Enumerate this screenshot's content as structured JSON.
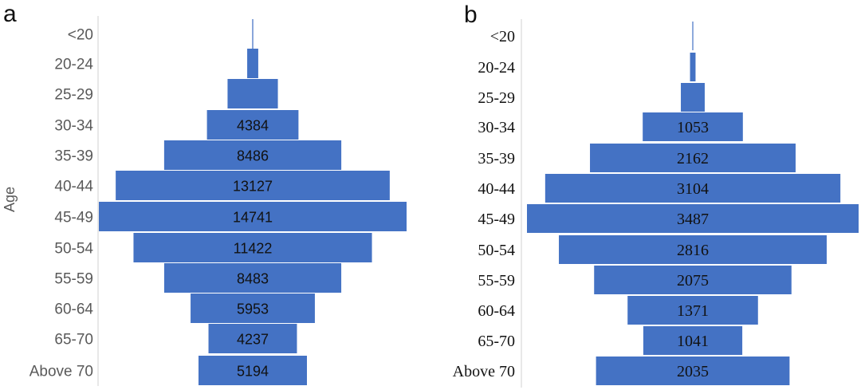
{
  "chart_data": [
    {
      "type": "bar",
      "orientation": "horizontal-centered",
      "panel_label": "a",
      "ylabel": "Age",
      "categories": [
        "<20",
        "20-24",
        "25-29",
        "30-34",
        "35-39",
        "40-44",
        "45-49",
        "50-54",
        "55-59",
        "60-64",
        "65-70",
        "Above 70"
      ],
      "values": [
        48,
        530,
        2410,
        4384,
        8486,
        13127,
        14741,
        11422,
        8483,
        5953,
        4237,
        5194
      ],
      "data_labels": [
        "",
        "",
        "",
        "4384",
        "8486",
        "13127",
        "14741",
        "11422",
        "8483",
        "5953",
        "4237",
        "5194"
      ],
      "color": "#4472c4",
      "legend": "none",
      "grid": false
    },
    {
      "type": "bar",
      "orientation": "horizontal-centered",
      "panel_label": "b",
      "ylabel": "",
      "categories": [
        "<20",
        "20-24",
        "25-29",
        "30-34",
        "35-39",
        "40-44",
        "45-49",
        "50-54",
        "55-59",
        "60-64",
        "65-70",
        "Above 70"
      ],
      "values": [
        10,
        58,
        251,
        1053,
        2162,
        3104,
        3487,
        2816,
        2075,
        1371,
        1041,
        2035
      ],
      "data_labels": [
        "",
        "",
        "",
        "1053",
        "2162",
        "3104",
        "3487",
        "2816",
        "2075",
        "1371",
        "1041",
        "2035"
      ],
      "color": "#4472c4",
      "legend": "none",
      "grid": false
    }
  ]
}
